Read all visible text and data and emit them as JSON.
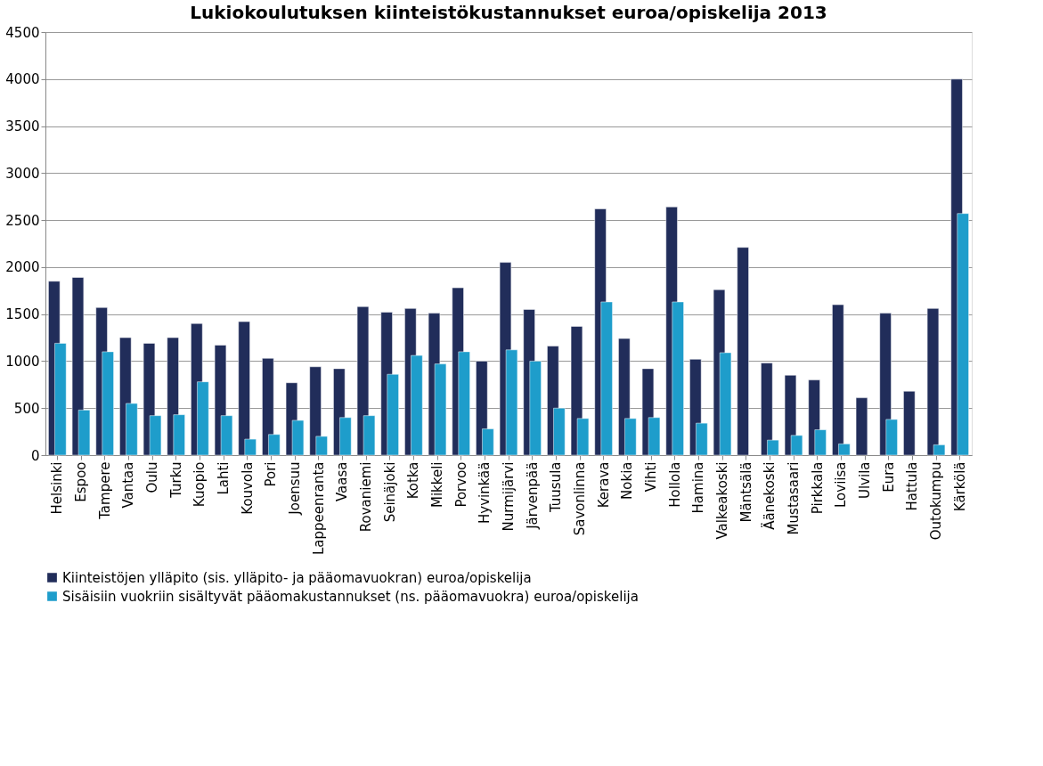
{
  "chart_data": {
    "type": "bar",
    "title": "Lukiokoulutuksen kiinteistökustannukset euroa/opiskelija 2013",
    "categories": [
      "Helsinki",
      "Espoo",
      "Tampere",
      "Vantaa",
      "Oulu",
      "Turku",
      "Kuopio",
      "Lahti",
      "Kouvola",
      "Pori",
      "Joensuu",
      "Lappeenranta",
      "Vaasa",
      "Rovaniemi",
      "Seinäjoki",
      "Kotka",
      "Mikkeli",
      "Porvoo",
      "Hyvinkää",
      "Nurmijärvi",
      "Järvenpää",
      "Tuusula",
      "Savonlinna",
      "Kerava",
      "Nokia",
      "Vihti",
      "Hollola",
      "Hamina",
      "Valkeakoski",
      "Mäntsälä",
      "Äänekoski",
      "Mustasaari",
      "Pirkkala",
      "Loviisa",
      "Ulvila",
      "Eura",
      "Hattula",
      "Outokumpu",
      "Kärkölä"
    ],
    "series": [
      {
        "name": "Kiinteistöjen ylläpito (sis. ylläpito- ja pääomavuokran) euroa/opiskelija",
        "color": "#212d5a",
        "values": [
          1850,
          1890,
          1570,
          1250,
          1190,
          1250,
          1400,
          1170,
          1420,
          1030,
          770,
          940,
          920,
          1580,
          1520,
          1560,
          1510,
          1780,
          1000,
          2050,
          1550,
          1160,
          1370,
          2620,
          1240,
          920,
          2640,
          1020,
          1760,
          2210,
          980,
          850,
          800,
          1600,
          610,
          1510,
          680,
          1560,
          4000
        ]
      },
      {
        "name": "Sisäisiin vuokriin sisältyvät pääomakustannukset (ns. pääomavuokra) euroa/opiskelija",
        "color": "#1e9dcb",
        "values": [
          1190,
          480,
          1100,
          550,
          420,
          430,
          780,
          420,
          170,
          220,
          370,
          200,
          400,
          420,
          860,
          1060,
          970,
          1100,
          280,
          1120,
          1000,
          500,
          390,
          1630,
          390,
          400,
          1630,
          340,
          1090,
          null,
          160,
          210,
          270,
          120,
          null,
          380,
          null,
          110,
          2570
        ]
      }
    ],
    "ylim": [
      0,
      4500
    ],
    "yticks": [
      0,
      500,
      1000,
      1500,
      2000,
      2500,
      3000,
      3500,
      4000,
      4500
    ],
    "grid": "y",
    "legend": "bottom"
  }
}
